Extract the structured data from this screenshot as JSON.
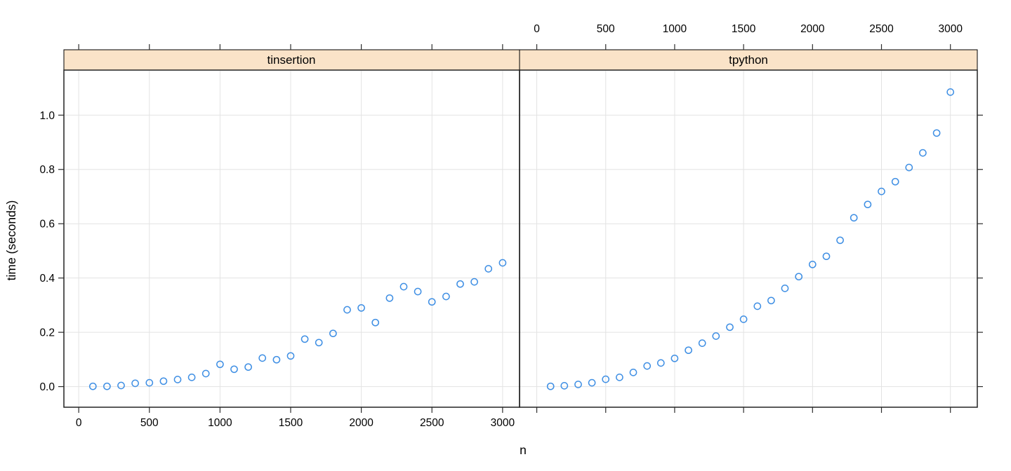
{
  "figure_title": "",
  "axes": {
    "xlabel": "n",
    "ylabel": "time (seconds)"
  },
  "strips": {
    "left_label": "tinsertion",
    "right_label": "tpython"
  },
  "chart_data": {
    "type": "scatter",
    "layout": "lattice-two-panel-trellis",
    "title": "",
    "xlabel": "n",
    "ylabel": "time (seconds)",
    "x": [
      100,
      200,
      300,
      400,
      500,
      600,
      700,
      800,
      900,
      1000,
      1100,
      1200,
      1300,
      1400,
      1500,
      1600,
      1700,
      1800,
      1900,
      2000,
      2100,
      2200,
      2300,
      2400,
      2500,
      2600,
      2700,
      2800,
      2900,
      3000
    ],
    "series": [
      {
        "name": "tinsertion",
        "values": [
          0.001,
          0.001,
          0.004,
          0.012,
          0.014,
          0.02,
          0.026,
          0.034,
          0.048,
          0.082,
          0.064,
          0.072,
          0.105,
          0.099,
          0.113,
          0.175,
          0.162,
          0.196,
          0.283,
          0.29,
          0.236,
          0.326,
          0.368,
          0.35,
          0.312,
          0.332,
          0.378,
          0.386,
          0.434,
          0.456
        ]
      },
      {
        "name": "tpython",
        "values": [
          0.001,
          0.003,
          0.008,
          0.014,
          0.027,
          0.034,
          0.052,
          0.076,
          0.087,
          0.104,
          0.134,
          0.16,
          0.186,
          0.219,
          0.248,
          0.296,
          0.317,
          0.362,
          0.405,
          0.45,
          0.48,
          0.539,
          0.622,
          0.671,
          0.719,
          0.755,
          0.807,
          0.861,
          0.934,
          1.085
        ]
      }
    ],
    "x_ticks": [
      0,
      500,
      1000,
      1500,
      2000,
      2500,
      3000
    ],
    "y_ticks": [
      0.0,
      0.2,
      0.4,
      0.6,
      0.8,
      1.0
    ],
    "xlim_display": [
      -110,
      3160
    ],
    "ylim_display": [
      -0.076,
      1.166
    ],
    "grid": true,
    "legend_position": "none",
    "marker": "open-circle",
    "point_color": "#3f8fe4",
    "strip_bg": "#fae3c8",
    "grid_color": "#e3e3e3",
    "border_color": "#222222"
  }
}
